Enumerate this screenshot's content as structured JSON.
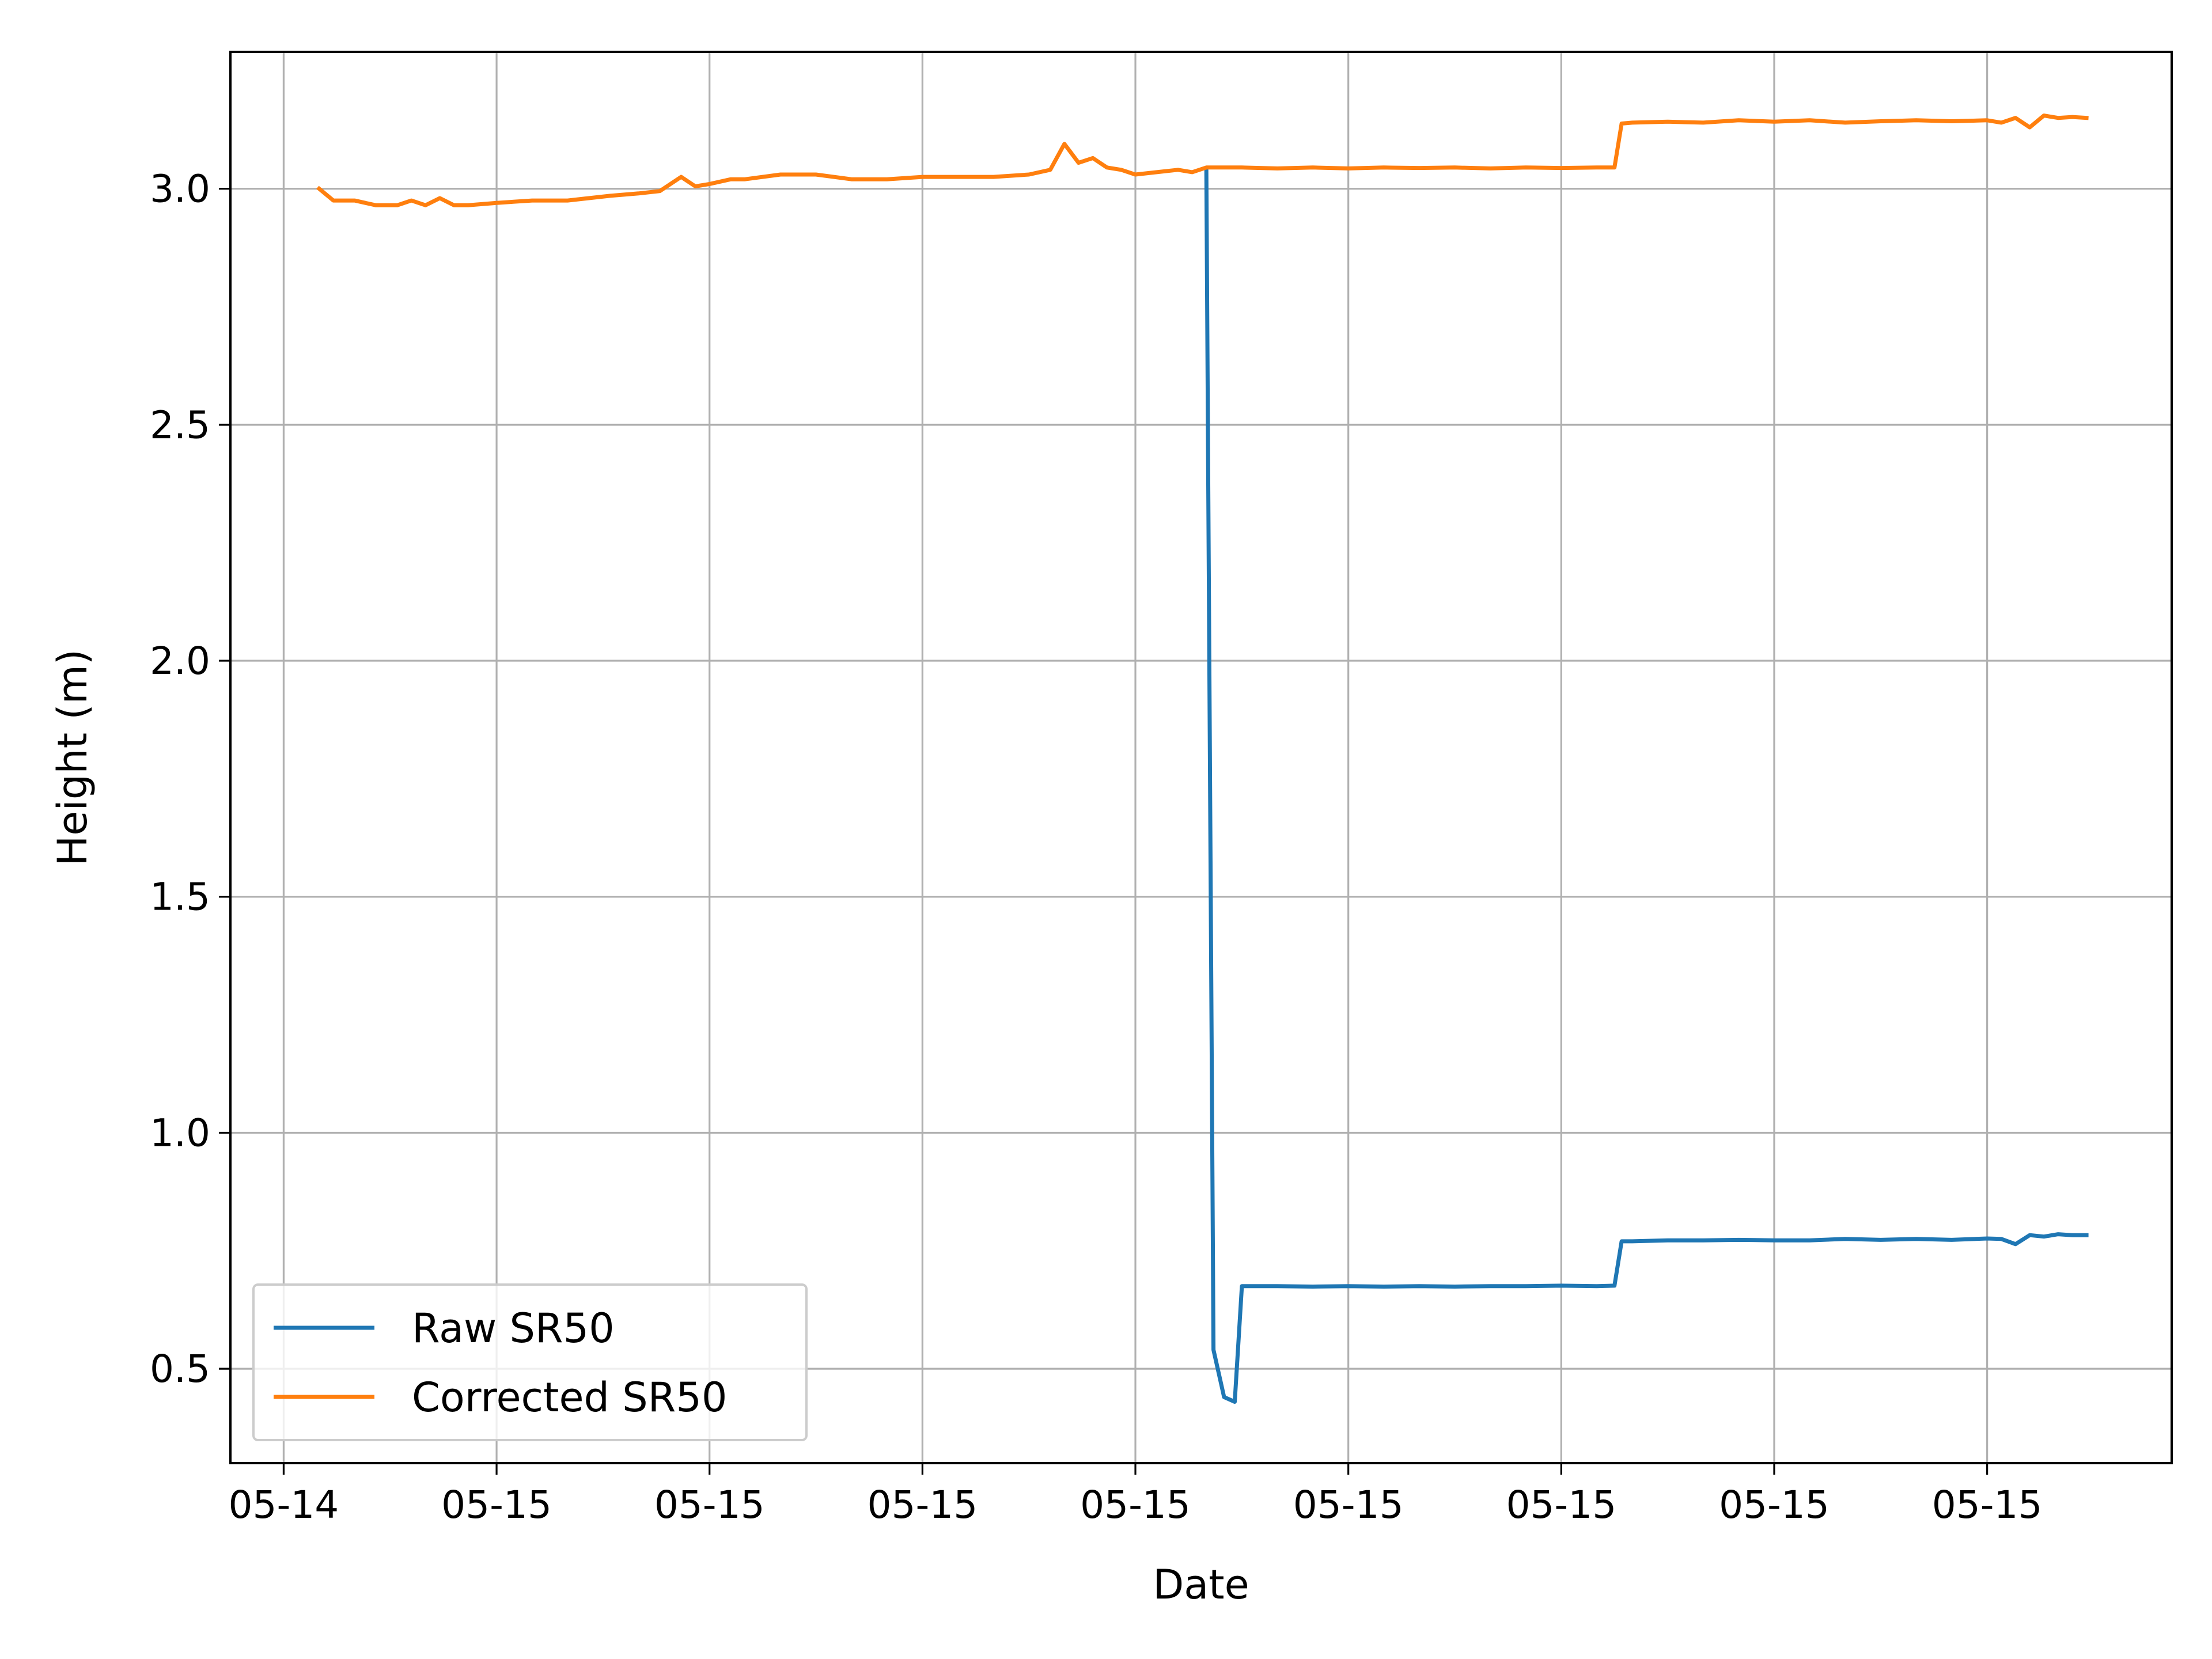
{
  "chart_data": {
    "type": "line",
    "xlabel": "Date",
    "ylabel": "Height (m)",
    "x_tick_labels": [
      "05-14",
      "05-15",
      "05-15",
      "05-15",
      "05-15",
      "05-15",
      "05-15",
      "05-15",
      "05-15"
    ],
    "x_ticks": [
      0,
      3,
      6,
      9,
      12,
      15,
      18,
      21,
      24
    ],
    "xlim": [
      -0.75,
      26.6
    ],
    "ylim": [
      0.3,
      3.29
    ],
    "y_ticks": [
      0.5,
      1.0,
      1.5,
      2.0,
      2.5,
      3.0
    ],
    "y_tick_labels": [
      "0.5",
      "1.0",
      "1.5",
      "2.0",
      "2.5",
      "3.0"
    ],
    "grid": true,
    "legend_position": "lower-left",
    "series": [
      {
        "name": "Raw SR50",
        "color": "#1f77b4",
        "x": [
          13.0,
          13.1,
          13.25,
          13.4,
          13.5,
          13.6,
          14.0,
          14.5,
          15.0,
          15.5,
          16.0,
          16.5,
          17.0,
          17.5,
          18.0,
          18.5,
          18.75,
          18.85,
          19.0,
          19.5,
          20.0,
          20.5,
          21.0,
          21.5,
          22.0,
          22.5,
          23.0,
          23.5,
          24.0,
          24.2,
          24.4,
          24.6,
          24.8,
          25.0,
          25.2,
          25.4
        ],
        "y": [
          3.04,
          0.54,
          0.44,
          0.43,
          0.675,
          0.675,
          0.675,
          0.674,
          0.675,
          0.674,
          0.675,
          0.674,
          0.675,
          0.675,
          0.676,
          0.675,
          0.676,
          0.77,
          0.77,
          0.772,
          0.772,
          0.773,
          0.772,
          0.772,
          0.775,
          0.773,
          0.775,
          0.773,
          0.776,
          0.775,
          0.764,
          0.783,
          0.78,
          0.785,
          0.783,
          0.783
        ]
      },
      {
        "name": "Corrected SR50",
        "color": "#ff7f0e",
        "x": [
          0.5,
          0.7,
          1.0,
          1.3,
          1.6,
          1.8,
          2.0,
          2.2,
          2.4,
          2.6,
          3.0,
          3.5,
          4.0,
          4.3,
          4.6,
          5.0,
          5.3,
          5.6,
          5.8,
          6.0,
          6.3,
          6.5,
          7.0,
          7.5,
          8.0,
          8.5,
          9.0,
          9.5,
          10.0,
          10.5,
          10.8,
          11.0,
          11.2,
          11.4,
          11.6,
          11.8,
          12.0,
          12.3,
          12.6,
          12.8,
          13.0,
          13.5,
          14.0,
          14.5,
          15.0,
          15.5,
          16.0,
          16.5,
          17.0,
          17.5,
          18.0,
          18.5,
          18.75,
          18.85,
          19.0,
          19.5,
          20.0,
          20.5,
          21.0,
          21.5,
          22.0,
          22.5,
          23.0,
          23.5,
          24.0,
          24.2,
          24.4,
          24.6,
          24.8,
          25.0,
          25.2,
          25.4
        ],
        "y": [
          3.0,
          2.975,
          2.975,
          2.965,
          2.965,
          2.975,
          2.965,
          2.98,
          2.965,
          2.965,
          2.97,
          2.975,
          2.975,
          2.98,
          2.985,
          2.99,
          2.995,
          3.025,
          3.005,
          3.01,
          3.02,
          3.02,
          3.03,
          3.03,
          3.02,
          3.02,
          3.025,
          3.025,
          3.025,
          3.03,
          3.04,
          3.095,
          3.055,
          3.065,
          3.045,
          3.04,
          3.03,
          3.035,
          3.04,
          3.035,
          3.045,
          3.045,
          3.043,
          3.045,
          3.043,
          3.045,
          3.044,
          3.045,
          3.043,
          3.045,
          3.044,
          3.045,
          3.045,
          3.138,
          3.14,
          3.142,
          3.14,
          3.145,
          3.142,
          3.145,
          3.14,
          3.143,
          3.145,
          3.143,
          3.145,
          3.14,
          3.15,
          3.13,
          3.155,
          3.15,
          3.152,
          3.15
        ]
      }
    ]
  }
}
